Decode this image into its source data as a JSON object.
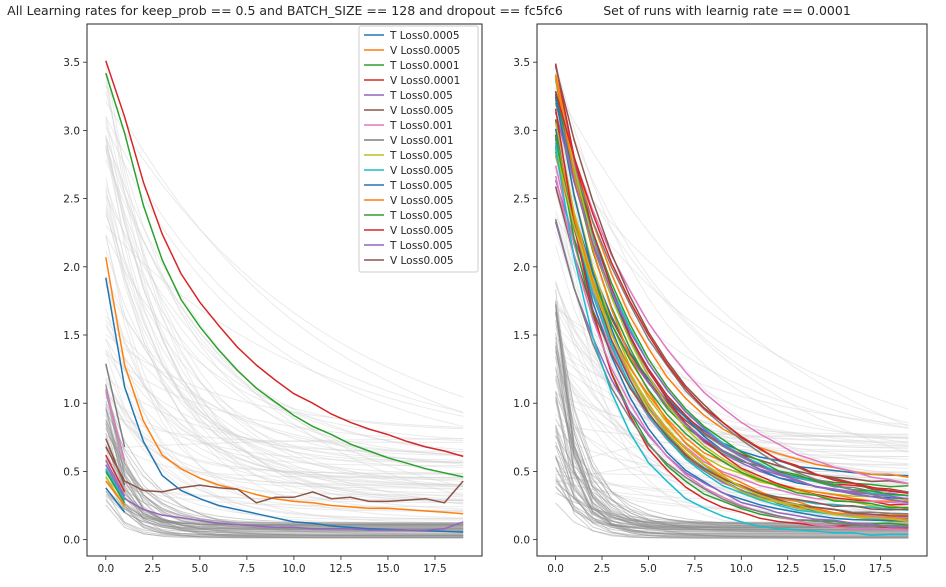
{
  "chart_data": [
    {
      "type": "line",
      "title": "All Learning rates for keep_prob == 0.5 and BATCH_SIZE == 128 and dropout == fc5fc6",
      "xlabel": "",
      "ylabel": "",
      "xlim": [
        -1,
        20
      ],
      "ylim": [
        -0.12,
        3.78
      ],
      "x_ticks": [
        0,
        2.5,
        5,
        7.5,
        10,
        12.5,
        15,
        17.5
      ],
      "x_tick_labels": [
        "0.0",
        "2.5",
        "5.0",
        "7.5",
        "10.0",
        "12.5",
        "15.0",
        "17.5"
      ],
      "y_ticks": [
        0,
        0.5,
        1,
        1.5,
        2,
        2.5,
        3,
        3.5
      ],
      "y_tick_labels": [
        "0.0",
        "0.5",
        "1.0",
        "1.5",
        "2.0",
        "2.5",
        "3.0",
        "3.5"
      ],
      "grid": false,
      "legend_position": "top-right",
      "background_series": "many light-gray loss curves from all runs",
      "series": [
        {
          "name": "T Loss0.0005",
          "color": "#1f77b4",
          "x": [
            0,
            1,
            2,
            3,
            4,
            5,
            6,
            7,
            8,
            9,
            10,
            11,
            12,
            13,
            14,
            15,
            16,
            17,
            18,
            19
          ],
          "values": [
            1.92,
            1.12,
            0.72,
            0.47,
            0.36,
            0.3,
            0.25,
            0.22,
            0.19,
            0.16,
            0.13,
            0.12,
            0.1,
            0.09,
            0.08,
            0.075,
            0.07,
            0.065,
            0.06,
            0.055
          ]
        },
        {
          "name": "V Loss0.0005",
          "color": "#ff7f0e",
          "x": [
            0,
            1,
            2,
            3,
            4,
            5,
            6,
            7,
            8,
            9,
            10,
            11,
            12,
            13,
            14,
            15,
            16,
            17,
            18,
            19
          ],
          "values": [
            2.07,
            1.28,
            0.87,
            0.62,
            0.52,
            0.45,
            0.4,
            0.37,
            0.33,
            0.3,
            0.28,
            0.27,
            0.25,
            0.24,
            0.23,
            0.23,
            0.22,
            0.21,
            0.2,
            0.19
          ]
        },
        {
          "name": "T Loss0.0001",
          "color": "#2ca02c",
          "x": [
            0,
            1,
            2,
            3,
            4,
            5,
            6,
            7,
            8,
            9,
            10,
            11,
            12,
            13,
            14,
            15,
            16,
            17,
            18,
            19
          ],
          "values": [
            3.42,
            2.98,
            2.45,
            2.05,
            1.76,
            1.56,
            1.39,
            1.24,
            1.11,
            1.01,
            0.91,
            0.83,
            0.77,
            0.7,
            0.65,
            0.6,
            0.56,
            0.52,
            0.49,
            0.46
          ]
        },
        {
          "name": "V Loss0.0001",
          "color": "#d62728",
          "x": [
            0,
            1,
            2,
            3,
            4,
            5,
            6,
            7,
            8,
            9,
            10,
            11,
            12,
            13,
            14,
            15,
            16,
            17,
            18,
            19
          ],
          "values": [
            3.51,
            3.1,
            2.62,
            2.24,
            1.95,
            1.74,
            1.57,
            1.41,
            1.28,
            1.17,
            1.07,
            1.0,
            0.92,
            0.86,
            0.81,
            0.77,
            0.72,
            0.68,
            0.65,
            0.61
          ]
        },
        {
          "name": "T Loss0.005",
          "color": "#9467bd",
          "x": [
            0,
            1,
            2,
            3,
            4,
            5,
            6,
            7,
            8,
            9,
            10,
            11,
            12,
            13,
            14,
            15,
            16,
            17,
            18,
            19
          ],
          "values": [
            0.55,
            0.3,
            0.22,
            0.18,
            0.16,
            0.14,
            0.12,
            0.11,
            0.1,
            0.09,
            0.09,
            0.08,
            0.08,
            0.08,
            0.07,
            0.07,
            0.07,
            0.07,
            0.08,
            0.13
          ]
        },
        {
          "name": "V Loss0.005",
          "color": "#8c564b",
          "x": [
            0,
            1,
            2,
            3,
            4,
            5,
            6,
            7,
            8,
            9,
            10,
            11,
            12,
            13,
            14,
            15,
            16,
            17,
            18,
            19
          ],
          "values": [
            0.68,
            0.43,
            0.36,
            0.35,
            0.38,
            0.4,
            0.38,
            0.37,
            0.27,
            0.31,
            0.31,
            0.35,
            0.3,
            0.31,
            0.28,
            0.28,
            0.29,
            0.3,
            0.27,
            0.43
          ]
        },
        {
          "name": "T Loss0.001",
          "color": "#e377c2",
          "x": [
            0,
            1
          ],
          "values": [
            1.1,
            0.58
          ]
        },
        {
          "name": "V Loss0.001",
          "color": "#7f7f7f",
          "x": [
            0,
            1
          ],
          "values": [
            1.29,
            0.68
          ]
        },
        {
          "name": "T Loss0.005",
          "color": "#bcbd22",
          "x": [
            0,
            1
          ],
          "values": [
            0.46,
            0.24
          ]
        },
        {
          "name": "V Loss0.005",
          "color": "#17becf",
          "x": [
            0,
            1
          ],
          "values": [
            0.52,
            0.29
          ]
        },
        {
          "name": "T Loss0.005",
          "color": "#1f77b4",
          "x": [
            0,
            1
          ],
          "values": [
            0.38,
            0.2
          ]
        },
        {
          "name": "V Loss0.005",
          "color": "#ff7f0e",
          "x": [
            0,
            1
          ],
          "values": [
            0.43,
            0.25
          ]
        },
        {
          "name": "T Loss0.005",
          "color": "#2ca02c",
          "x": [
            0,
            1
          ],
          "values": [
            0.5,
            0.27
          ]
        },
        {
          "name": "V Loss0.005",
          "color": "#d62728",
          "x": [
            0,
            1
          ],
          "values": [
            0.62,
            0.35
          ]
        },
        {
          "name": "T Loss0.005",
          "color": "#9467bd",
          "x": [
            0,
            1
          ],
          "values": [
            0.58,
            0.32
          ]
        },
        {
          "name": "V Loss0.005",
          "color": "#8c564b",
          "x": [
            0,
            1
          ],
          "values": [
            0.74,
            0.4
          ]
        }
      ]
    },
    {
      "type": "line",
      "title": "Set of runs with learnig rate == 0.0001",
      "xlabel": "",
      "ylabel": "",
      "xlim": [
        -1,
        20
      ],
      "ylim": [
        -0.12,
        3.78
      ],
      "x_ticks": [
        0,
        2.5,
        5,
        7.5,
        10,
        12.5,
        15,
        17.5
      ],
      "x_tick_labels": [
        "0.0",
        "2.5",
        "5.0",
        "7.5",
        "10.0",
        "12.5",
        "15.0",
        "17.5"
      ],
      "y_ticks": [
        0,
        0.5,
        1,
        1.5,
        2,
        2.5,
        3,
        3.5
      ],
      "y_tick_labels": [
        "0.0",
        "0.5",
        "1.0",
        "1.5",
        "2.0",
        "2.5",
        "3.0",
        "3.5"
      ],
      "grid": false,
      "background_series": "many light-gray loss curves from all runs",
      "run_families": [
        {
          "start": 3.6,
          "end": 0.86,
          "count": 2
        },
        {
          "start": 3.55,
          "end": 0.62,
          "count": 6
        },
        {
          "start": 3.5,
          "end": 0.45,
          "count": 8
        },
        {
          "start": 3.4,
          "end": 0.35,
          "count": 10
        },
        {
          "start": 3.2,
          "end": 0.25,
          "count": 8
        },
        {
          "start": 2.9,
          "end": 0.15,
          "count": 6
        }
      ],
      "palette": [
        "#1f77b4",
        "#ff7f0e",
        "#2ca02c",
        "#d62728",
        "#9467bd",
        "#8c564b",
        "#e377c2",
        "#7f7f7f",
        "#bcbd22",
        "#17becf"
      ]
    }
  ]
}
